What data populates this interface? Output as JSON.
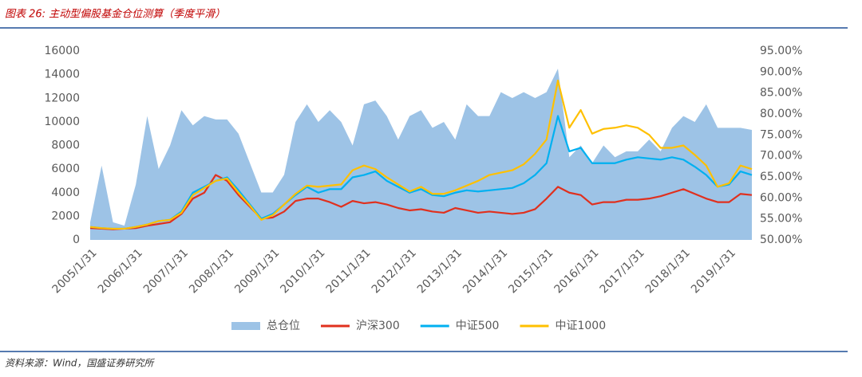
{
  "chart_data": {
    "type": "area-line",
    "title": "图表 26: 主动型偏股基金仓位测算（季度平滑）",
    "source": "资料来源：Wind，国盛证券研究所",
    "legend": "bottom",
    "categories": [
      "2005/1/31",
      null,
      null,
      null,
      "2006/1/31",
      null,
      null,
      null,
      "2007/1/31",
      null,
      null,
      null,
      "2008/1/31",
      null,
      null,
      null,
      "2009/1/31",
      null,
      null,
      null,
      "2010/1/31",
      null,
      null,
      null,
      "2011/1/31",
      null,
      null,
      null,
      "2012/1/31",
      null,
      null,
      null,
      "2013/1/31",
      null,
      null,
      null,
      "2014/1/31",
      null,
      null,
      null,
      "2015/1/31",
      null,
      null,
      null,
      "2016/1/31",
      null,
      null,
      null,
      "2017/1/31",
      null,
      null,
      null,
      "2018/1/31",
      null,
      null,
      null,
      "2019/1/31",
      null,
      null
    ],
    "ylim": [
      0,
      16000
    ],
    "yticks": [
      0,
      2000,
      4000,
      6000,
      8000,
      10000,
      12000,
      14000,
      16000
    ],
    "y2lim": [
      50,
      95
    ],
    "y2ticks": [
      {
        "value": 50,
        "label": "50.00%"
      },
      {
        "value": 55,
        "label": "55.00%"
      },
      {
        "value": 60,
        "label": "60.00%"
      },
      {
        "value": 65,
        "label": "65.00%"
      },
      {
        "value": 70,
        "label": "70.00%"
      },
      {
        "value": 75,
        "label": "75.00%"
      },
      {
        "value": 80,
        "label": "80.00%"
      },
      {
        "value": 85,
        "label": "85.00%"
      },
      {
        "value": 90,
        "label": "90.00%"
      },
      {
        "value": 95,
        "label": "95.00%"
      }
    ],
    "series": [
      {
        "name": "总仓位",
        "kind": "area",
        "axis": "y2",
        "color": "#9dc3e6",
        "values": [
          54.2,
          67.7,
          54.2,
          53.4,
          63.2,
          79.5,
          66.9,
          72.5,
          80.9,
          77.3,
          79.5,
          78.7,
          78.7,
          75.3,
          68.3,
          61.3,
          61.3,
          65.5,
          78.1,
          82.3,
          78.1,
          80.9,
          78.1,
          72.5,
          82.3,
          83.2,
          79.5,
          73.9,
          79.5,
          80.9,
          76.7,
          78.1,
          73.9,
          82.3,
          79.5,
          79.5,
          85.2,
          83.8,
          85.2,
          83.8,
          85.2,
          90.8,
          69.7,
          72.5,
          68.3,
          72.5,
          69.7,
          71.1,
          71.1,
          73.9,
          71.1,
          76.7,
          79.5,
          78.1,
          82.3,
          76.7,
          76.7,
          76.7,
          76.2
        ]
      },
      {
        "name": "沪深300",
        "kind": "line",
        "color": "#e0301e",
        "values": [
          1000,
          950,
          900,
          950,
          1000,
          1200,
          1350,
          1500,
          2200,
          3500,
          4000,
          5500,
          5000,
          3800,
          2800,
          1800,
          1900,
          2400,
          3300,
          3500,
          3500,
          3200,
          2800,
          3300,
          3100,
          3200,
          3000,
          2700,
          2500,
          2600,
          2400,
          2300,
          2700,
          2500,
          2300,
          2400,
          2300,
          2200,
          2300,
          2600,
          3500,
          4500,
          4000,
          3800,
          3000,
          3200,
          3200,
          3400,
          3400,
          3500,
          3700,
          4000,
          4300,
          3900,
          3500,
          3200,
          3200,
          3900,
          3800
        ]
      },
      {
        "name": "中证500",
        "kind": "line",
        "color": "#00b0f0",
        "values": [
          1100,
          1000,
          950,
          950,
          1100,
          1300,
          1600,
          1700,
          2400,
          4000,
          4500,
          5000,
          5300,
          4200,
          3000,
          1800,
          2200,
          3000,
          3800,
          4500,
          4000,
          4300,
          4300,
          5300,
          5500,
          5800,
          5000,
          4500,
          4000,
          4300,
          3800,
          3700,
          4000,
          4200,
          4100,
          4200,
          4300,
          4400,
          4800,
          5500,
          6500,
          10500,
          7500,
          7800,
          6500,
          6500,
          6500,
          6800,
          7000,
          6900,
          6800,
          7000,
          6800,
          6200,
          5500,
          4500,
          4700,
          5800,
          5500
        ]
      },
      {
        "name": "中证1000",
        "kind": "line",
        "color": "#ffc000",
        "values": [
          1100,
          1000,
          950,
          950,
          1100,
          1300,
          1600,
          1700,
          2300,
          3800,
          4400,
          5000,
          5200,
          4000,
          2900,
          1700,
          2100,
          3000,
          3900,
          4600,
          4500,
          4600,
          4700,
          5900,
          6300,
          6000,
          5300,
          4700,
          4100,
          4500,
          3900,
          3900,
          4200,
          4600,
          5000,
          5500,
          5700,
          5900,
          6400,
          7300,
          8500,
          13500,
          9500,
          11000,
          9000,
          9400,
          9500,
          9700,
          9500,
          8900,
          7800,
          7800,
          8000,
          7200,
          6300,
          4500,
          4800,
          6300,
          6000
        ]
      }
    ]
  }
}
